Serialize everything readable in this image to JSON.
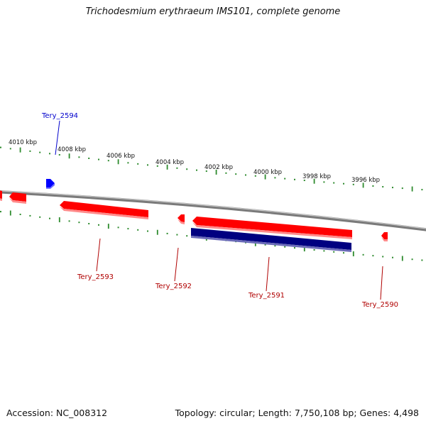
{
  "title": "Trichodesmium erythraeum IMS101, complete genome",
  "footer": {
    "accession": "Accession: NC_008312",
    "summary": "Topology: circular; Length: 7,750,108 bp; Genes: 4,498"
  },
  "colors": {
    "forward_gene": "#ff0000",
    "forward_gene_highlight": "#ff8080",
    "reverse_gene": "#000080",
    "reverse_gene_highlight": "#6a6ab8",
    "tick": "#2e8b2e",
    "backbone": "#888888",
    "label_forward": "#b00000",
    "label_reverse": "#0000cc"
  },
  "ticks": [
    {
      "label": "4010 kbp"
    },
    {
      "label": "4008 kbp"
    },
    {
      "label": "4006 kbp"
    },
    {
      "label": "4004 kbp"
    },
    {
      "label": "4002 kbp"
    },
    {
      "label": "4000 kbp"
    },
    {
      "label": "3998 kbp"
    },
    {
      "label": "3996 kbp"
    }
  ],
  "genes": [
    {
      "name": "Tery_2594",
      "strand": "reverse-label-top"
    },
    {
      "name": "Tery_2593",
      "strand": "forward"
    },
    {
      "name": "Tery_2592",
      "strand": "forward"
    },
    {
      "name": "Tery_2591",
      "strand": "reverse"
    },
    {
      "name": "Tery_2590",
      "strand": "forward"
    }
  ]
}
